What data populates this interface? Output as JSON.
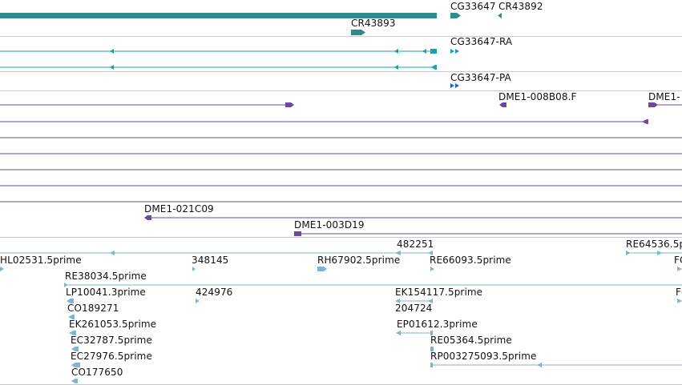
{
  "tracks": {
    "gene_track": {
      "labels": [
        "CG33647",
        "CR43892",
        "CR43893"
      ]
    },
    "transcripts_ra": {
      "labels": [
        "CG33647-RA"
      ]
    },
    "transcripts_pa": {
      "labels": [
        "CG33647-PA"
      ]
    },
    "bac_clones": {
      "labels": [
        "DME1-008B08.F",
        "DME1-",
        "DME1-021C09",
        "DME1-003D19"
      ]
    },
    "est_track": {
      "labels": [
        "482251",
        "RE64536.5p",
        "HL02531.5prime",
        "348145",
        "RH67902.5prime",
        "RE66093.5prime",
        "FC",
        "RE38034.5prime",
        "LP10041.3prime",
        "424976",
        "EK154117.5prime",
        "FC",
        "CO189271",
        "204724",
        "EK261053.5prime",
        "EP01612.3prime",
        "EC32787.5prime",
        "RE05364.5prime",
        "EC27976.5prime",
        "RP003275093.5prime",
        "CO177650"
      ]
    }
  },
  "colors": {
    "gene": "#2e8b8b",
    "transcript": "#1a9fb3",
    "protein": "#2a5fc4",
    "clone": "#6a4aa0",
    "est": "#7fb3d5",
    "separator": "#c8c8c8"
  }
}
